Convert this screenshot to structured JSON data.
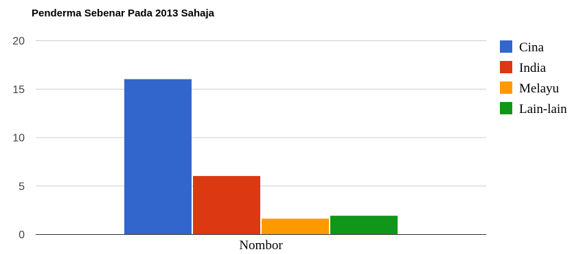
{
  "chart_data": {
    "type": "bar",
    "title": "Penderma Sebenar Pada 2013 Sahaja",
    "categories": [
      "Nombor"
    ],
    "series": [
      {
        "name": "Cina",
        "values": [
          16
        ],
        "color": "#3366cc"
      },
      {
        "name": "India",
        "values": [
          6
        ],
        "color": "#dc3912"
      },
      {
        "name": "Melayu",
        "values": [
          1.6
        ],
        "color": "#ff9900"
      },
      {
        "name": "Lain-lain",
        "values": [
          1.9
        ],
        "color": "#109618"
      }
    ],
    "xlabel": "",
    "ylabel": "",
    "ylim": [
      0,
      20
    ],
    "yticks": [
      "0",
      "5",
      "10",
      "15",
      "20"
    ],
    "grid": true,
    "legend_position": "right",
    "gridline_color": "#cccccc",
    "axis_color": "#333333"
  }
}
